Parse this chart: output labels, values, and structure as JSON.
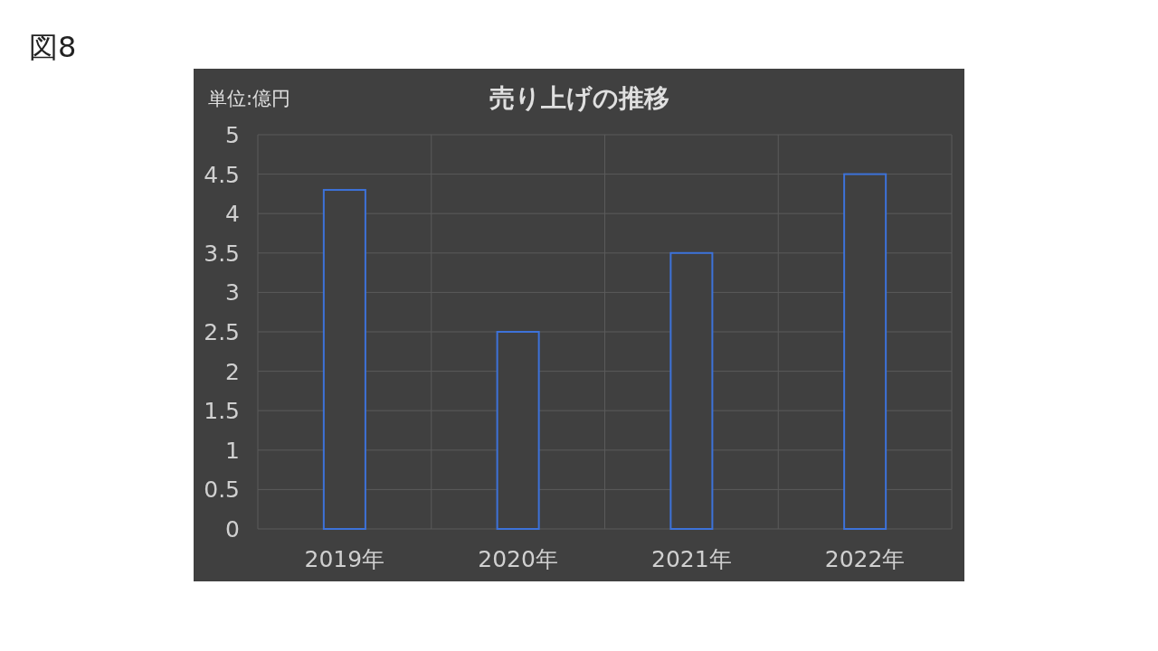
{
  "chart_data": {
    "type": "bar",
    "title": "売り上げの推移",
    "ylabel": "単位:億円",
    "annotations": [
      "図8"
    ],
    "categories": [
      "2019年",
      "2020年",
      "2021年",
      "2022年"
    ],
    "series": [
      {
        "color": "#3d72d9",
        "values": [
          4.3,
          2.5,
          3.5,
          4.5
        ]
      }
    ],
    "ylim": [
      0,
      5
    ],
    "yticks": [
      0,
      0.5,
      1,
      1.5,
      2,
      2.5,
      3,
      3.5,
      4,
      4.5,
      5
    ],
    "grid": true
  }
}
